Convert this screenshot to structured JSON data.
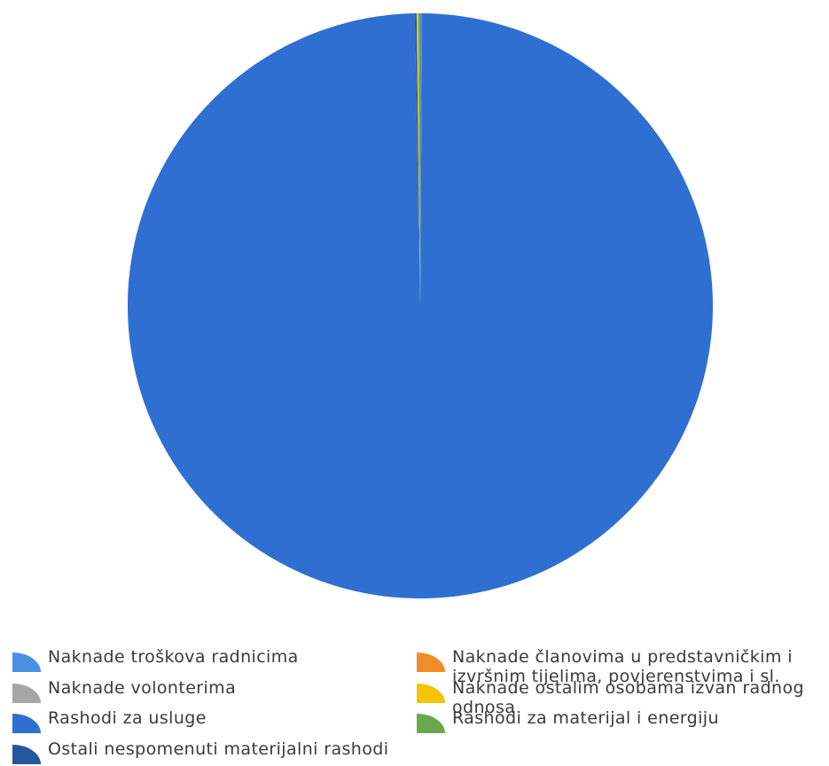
{
  "chart_data": {
    "type": "pie",
    "title": "",
    "slices": [
      {
        "label": "Naknade troškova radnicima",
        "value": 0.1,
        "color": "#4a90e2"
      },
      {
        "label": "Naknade volonterima",
        "value": 0.0,
        "color": "#a6a6a6"
      },
      {
        "label": "Rashodi za usluge",
        "value": 99.6,
        "color": "#2e6fd1"
      },
      {
        "label": "Ostali nespomenuti materijalni rashodi",
        "value": 0.1,
        "color": "#25579d"
      },
      {
        "label": "Naknade članovima u predstavničkim i izvršnim tijelima, povjerenstvima i sl.",
        "value": 0.0,
        "color": "#f28c28"
      },
      {
        "label": "Naknade ostalim osobama izvan radnog odnosa",
        "value": 0.1,
        "color": "#f2c500"
      },
      {
        "label": "Rashodi za materijal i energiju",
        "value": 0.1,
        "color": "#6aa84f"
      }
    ],
    "legend_position": "bottom"
  }
}
